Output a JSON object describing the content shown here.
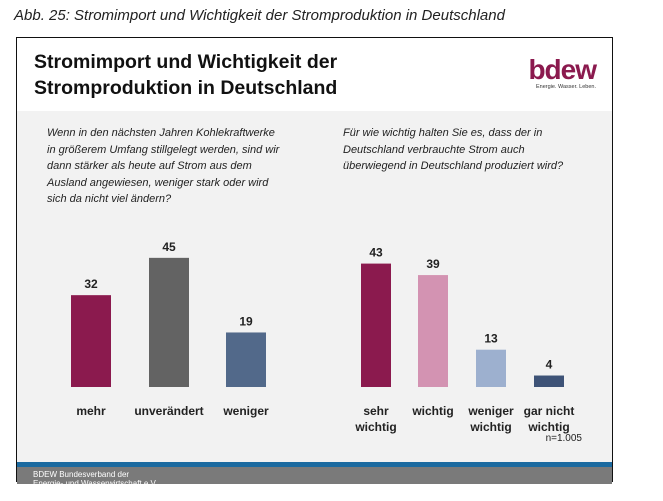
{
  "caption": "Abb. 25: Stromimport und Wichtigkeit der Stromproduktion in Deutschland",
  "header": {
    "title_line1": "Stromimport und Wichtigkeit der",
    "title_line2": "Stromproduktion in Deutschland",
    "logo": "bdew",
    "logo_tagline": "Energie. Wasser. Leben."
  },
  "footer": {
    "line1": "BDEW Bundesverband der",
    "line2": "Energie- und Wasserwirtschaft e.V."
  },
  "chart_data": [
    {
      "type": "bar",
      "question": "Wenn in den nächsten Jahren Kohlekraftwerke in größerem Umfang stillgelegt werden, sind wir dann stärker als heute auf Strom aus dem Ausland angewiesen, weniger stark oder wird sich da nicht viel ändern?",
      "question_lines": [
        "Wenn in den nächsten Jahren Kohlekraftwerke",
        "in größerem Umfang stillgelegt werden, sind wir",
        "dann stärker als heute auf Strom aus dem",
        "Ausland angewiesen, weniger stark oder wird",
        "sich da nicht viel ändern?"
      ],
      "categories": [
        [
          "mehr"
        ],
        [
          "unverändert"
        ],
        [
          "weniger"
        ]
      ],
      "values": [
        32,
        45,
        19
      ],
      "colors": [
        "#8b1a4e",
        "#636363",
        "#52698a"
      ]
    },
    {
      "type": "bar",
      "question": "Für wie wichtig halten Sie es, dass der in Deutschland verbrauchte Strom auch überwiegend in Deutschland produziert wird?",
      "question_lines": [
        "Für wie wichtig halten Sie es, dass der in",
        "Deutschland verbrauchte Strom auch",
        "überwiegend in Deutschland produziert wird?"
      ],
      "categories": [
        [
          "sehr",
          "wichtig"
        ],
        [
          "wichtig"
        ],
        [
          "weniger",
          "wichtig"
        ],
        [
          "gar nicht",
          "wichtig"
        ]
      ],
      "values": [
        43,
        39,
        13,
        4
      ],
      "colors": [
        "#8b1a4e",
        "#d393b2",
        "#9db0cf",
        "#3e5377"
      ]
    }
  ],
  "sample_note": "n=1.005"
}
